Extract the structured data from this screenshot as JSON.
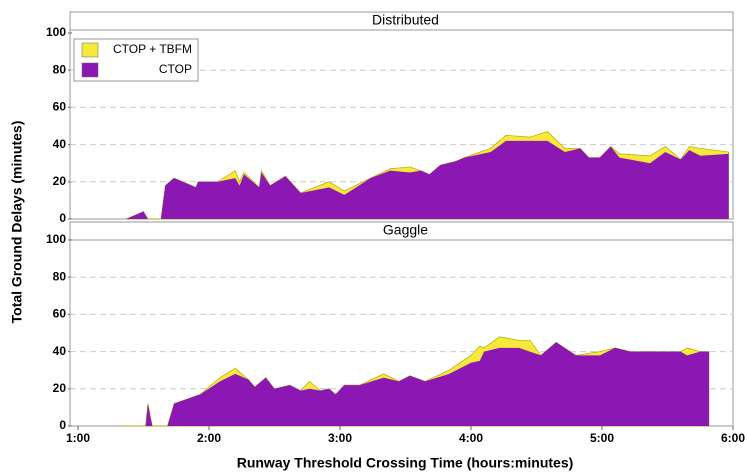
{
  "chart_data": [
    {
      "type": "area",
      "title": "Distributed",
      "ylabel": "Total Ground Delays (minutes)",
      "legend": "upper left",
      "xlim": [
        60,
        360
      ],
      "ylim": [
        0,
        100
      ],
      "yticks": [
        0,
        20,
        40,
        60,
        80,
        100
      ],
      "grid": true,
      "series": [
        {
          "name": "CTOP + TBFM",
          "color": "#f7e93c",
          "x": [
            82,
            90,
            92,
            98,
            100,
            104,
            114,
            115,
            124,
            132,
            134,
            136,
            143,
            144,
            148,
            155,
            162,
            175,
            182,
            194,
            203,
            212,
            217,
            221,
            226,
            233,
            237,
            249,
            256,
            267,
            275,
            283,
            290,
            294,
            299,
            304,
            308,
            322,
            329,
            336,
            340,
            345,
            358
          ],
          "values": [
            0,
            4,
            0,
            0,
            18,
            22,
            17,
            20,
            20,
            26,
            20,
            25,
            17,
            26,
            18,
            23,
            14,
            20,
            15,
            22,
            27,
            28,
            26,
            24,
            29,
            31,
            33,
            38,
            45,
            44,
            47,
            38,
            38,
            33,
            33,
            39,
            35,
            34,
            39,
            32,
            39,
            38,
            36
          ]
        },
        {
          "name": "CTOP",
          "color": "#8b18b2",
          "x": [
            82,
            90,
            92,
            98,
            100,
            104,
            114,
            115,
            124,
            132,
            134,
            136,
            143,
            144,
            148,
            155,
            162,
            175,
            182,
            194,
            203,
            212,
            217,
            221,
            226,
            233,
            237,
            249,
            256,
            267,
            275,
            283,
            290,
            294,
            299,
            304,
            308,
            322,
            329,
            336,
            340,
            345,
            358
          ],
          "values": [
            0,
            4,
            0,
            0,
            18,
            22,
            17,
            20,
            20,
            22,
            18,
            24,
            17,
            25,
            18,
            23,
            14,
            17,
            13,
            22,
            26,
            25,
            26,
            24,
            29,
            31,
            33,
            36,
            42,
            42,
            42,
            36,
            38,
            33,
            33,
            39,
            33,
            30,
            36,
            32,
            37,
            34,
            35
          ]
        }
      ]
    },
    {
      "type": "area",
      "title": "Gaggle",
      "xlabel": "Runway Threshold Crossing Time (hours:minutes)",
      "xlim": [
        60,
        360
      ],
      "ylim": [
        0,
        100
      ],
      "yticks": [
        0,
        20,
        40,
        60,
        80,
        100
      ],
      "grid": true,
      "xticks": [
        {
          "value": 60,
          "label": "1:00"
        },
        {
          "value": 120,
          "label": "2:00"
        },
        {
          "value": 180,
          "label": "3:00"
        },
        {
          "value": 240,
          "label": "4:00"
        },
        {
          "value": 300,
          "label": "5:00"
        },
        {
          "value": 360,
          "label": "6:00"
        }
      ],
      "series": [
        {
          "name": "CTOP + TBFM",
          "color": "#f7e93c",
          "x": [
            79,
            91,
            92,
            94,
            101,
            104,
            116,
            125,
            132,
            138,
            141,
            146,
            150,
            157,
            162,
            166,
            171,
            175,
            178,
            182,
            189,
            200,
            207,
            212,
            219,
            230,
            240,
            244,
            246,
            253,
            262,
            267,
            272,
            279,
            288,
            299,
            306,
            313,
            324,
            336,
            339,
            345,
            349
          ],
          "values": [
            0,
            0,
            12,
            0,
            0,
            12,
            17,
            26,
            31,
            25,
            21,
            26,
            20,
            22,
            19,
            24,
            19,
            20,
            17,
            22,
            22,
            28,
            24,
            27,
            24,
            30,
            38,
            43,
            42,
            48,
            46,
            46,
            38,
            45,
            38,
            40,
            42,
            40,
            40,
            40,
            42,
            40,
            40
          ]
        },
        {
          "name": "CTOP",
          "color": "#8b18b2",
          "x": [
            79,
            91,
            92,
            94,
            101,
            104,
            116,
            125,
            132,
            138,
            141,
            146,
            150,
            157,
            162,
            166,
            171,
            175,
            178,
            182,
            189,
            200,
            207,
            212,
            219,
            230,
            240,
            244,
            246,
            253,
            262,
            267,
            272,
            279,
            288,
            299,
            306,
            313,
            324,
            336,
            339,
            345,
            349
          ],
          "values": [
            0,
            0,
            12,
            0,
            0,
            12,
            17,
            24,
            28,
            25,
            21,
            26,
            20,
            22,
            19,
            20,
            19,
            20,
            17,
            22,
            22,
            26,
            24,
            27,
            24,
            28,
            34,
            35,
            40,
            42,
            42,
            40,
            38,
            45,
            38,
            38,
            42,
            40,
            40,
            40,
            38,
            40,
            40
          ]
        }
      ]
    }
  ]
}
